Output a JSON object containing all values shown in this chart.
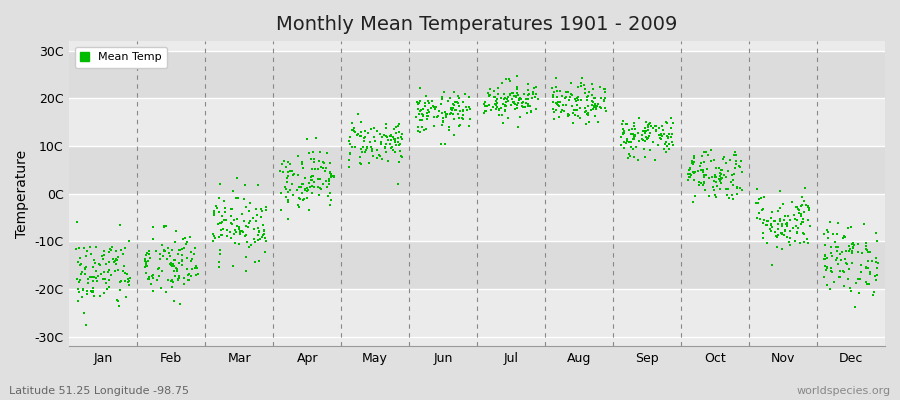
{
  "title": "Monthly Mean Temperatures 1901 - 2009",
  "ylabel": "Temperature",
  "xlabel_bottom_left": "Latitude 51.25 Longitude -98.75",
  "xlabel_bottom_right": "worldspecies.org",
  "legend_label": "Mean Temp",
  "dot_color": "#00BB00",
  "background_color": "#E0E0E0",
  "plot_bg_light": "#EBEBEB",
  "plot_bg_dark": "#DCDCDC",
  "grid_line_color": "#BBBBBB",
  "dashed_line_color": "#888888",
  "ylim": [
    -32,
    32
  ],
  "yticks": [
    -30,
    -20,
    -10,
    0,
    10,
    20,
    30
  ],
  "ytick_labels": [
    "-30C",
    "-20C",
    "-10C",
    "0C",
    "10C",
    "20C",
    "30C"
  ],
  "months": [
    "Jan",
    "Feb",
    "Mar",
    "Apr",
    "May",
    "Jun",
    "Jul",
    "Aug",
    "Sep",
    "Oct",
    "Nov",
    "Dec"
  ],
  "month_means": [
    -16.8,
    -15.0,
    -6.5,
    3.2,
    10.8,
    16.8,
    19.8,
    18.8,
    12.0,
    4.2,
    -5.8,
    -13.8
  ],
  "month_stds": [
    4.0,
    3.8,
    3.5,
    3.2,
    2.5,
    2.2,
    2.0,
    2.1,
    2.2,
    2.8,
    3.2,
    3.8
  ],
  "n_years": 109,
  "seed": 42,
  "dot_size": 4,
  "title_fontsize": 14,
  "axis_fontsize": 9,
  "ylabel_fontsize": 10,
  "legend_fontsize": 8
}
